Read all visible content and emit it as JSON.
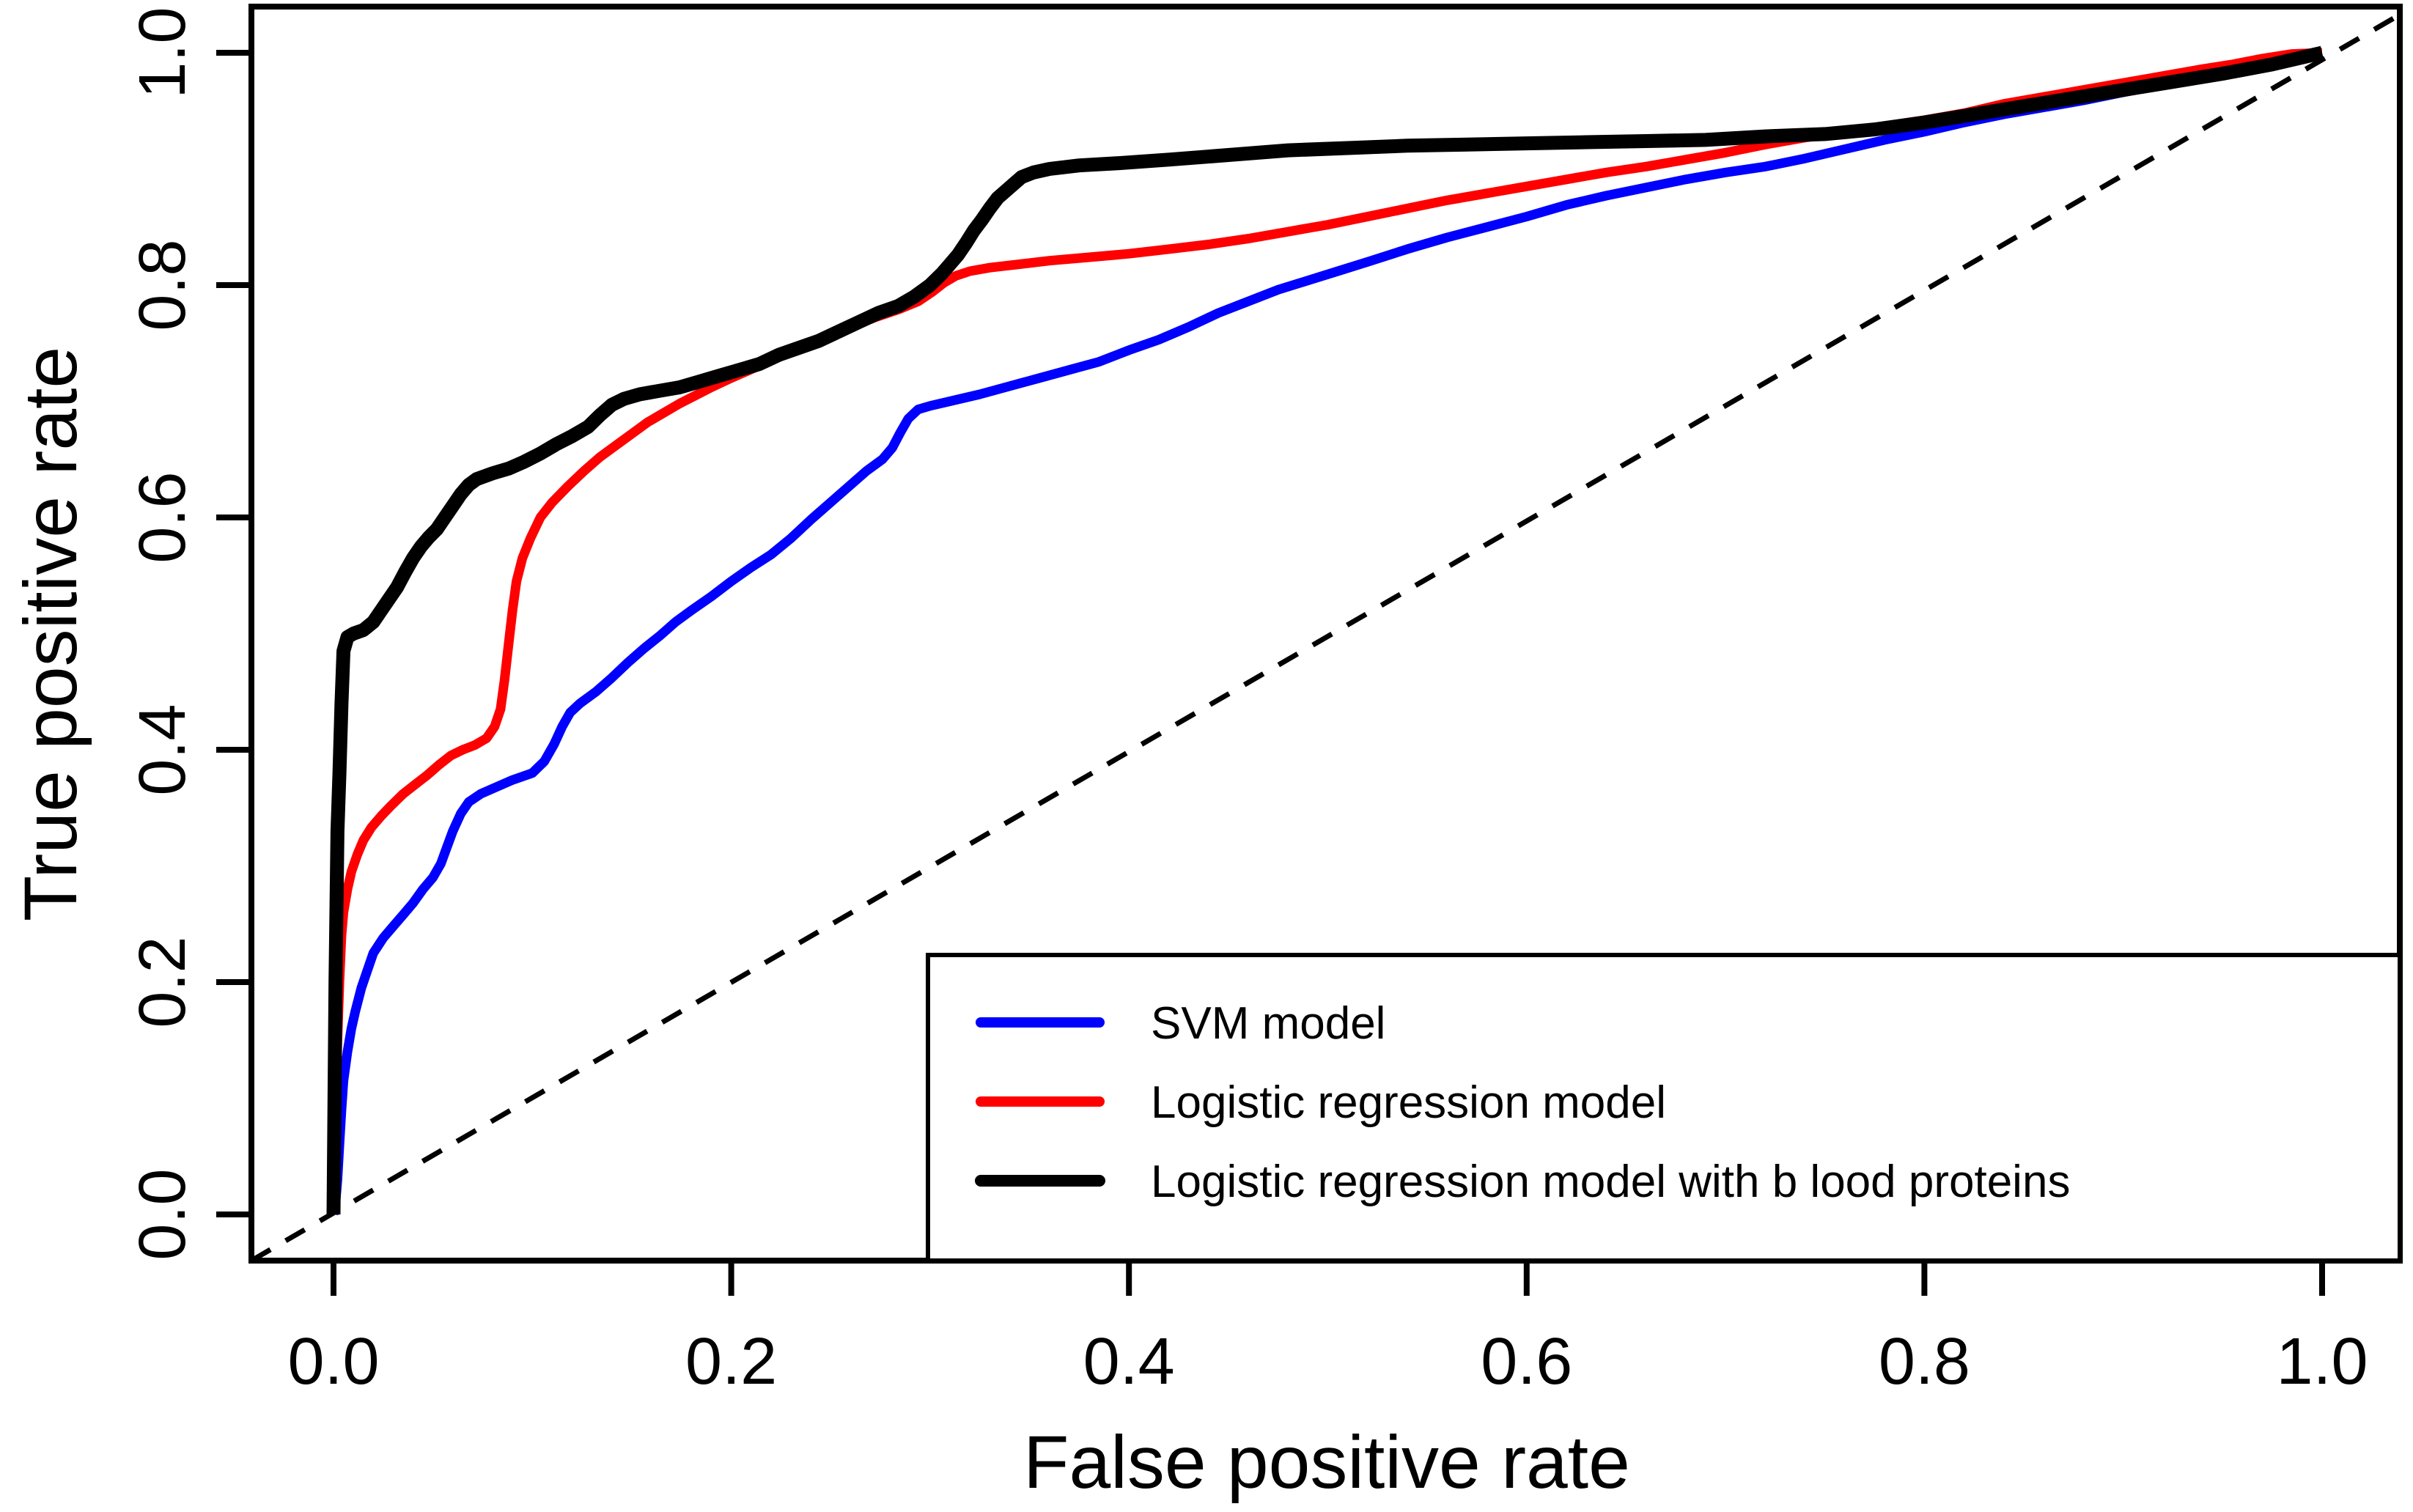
{
  "figure": {
    "background_color": "#ffffff",
    "axis_color": "#000000"
  },
  "chart_data": {
    "type": "line",
    "title": "",
    "xlabel": "False positive rate",
    "ylabel": "True positive rate",
    "xlim": [
      0,
      1
    ],
    "ylim": [
      0,
      1
    ],
    "grid": false,
    "x_tick_values": [
      0,
      0.2,
      0.4,
      0.6,
      0.8,
      1.0
    ],
    "x_tick_labels": [
      "0.0",
      "0.2",
      "0.4",
      "0.6",
      "0.8",
      "1.0"
    ],
    "y_tick_values": [
      0,
      0.2,
      0.4,
      0.6,
      0.8,
      1.0
    ],
    "y_tick_labels": [
      "0.0",
      "0.2",
      "0.4",
      "0.6",
      "0.8",
      "1.0"
    ],
    "legend_position": "bottom-right",
    "reference_line": {
      "style": "dashed",
      "color": "#000000",
      "from": [
        0,
        0
      ],
      "to": [
        1,
        1
      ]
    },
    "series": [
      {
        "name": "SVM model",
        "color": "#0000ff",
        "line_width": 13,
        "points": [
          [
            0,
            0
          ],
          [
            0.001,
            0.01
          ],
          [
            0.002,
            0.03
          ],
          [
            0.003,
            0.06
          ],
          [
            0.004,
            0.09
          ],
          [
            0.005,
            0.115
          ],
          [
            0.007,
            0.14
          ],
          [
            0.009,
            0.16
          ],
          [
            0.011,
            0.175
          ],
          [
            0.014,
            0.195
          ],
          [
            0.017,
            0.21
          ],
          [
            0.02,
            0.225
          ],
          [
            0.025,
            0.238
          ],
          [
            0.03,
            0.248
          ],
          [
            0.035,
            0.258
          ],
          [
            0.04,
            0.268
          ],
          [
            0.045,
            0.28
          ],
          [
            0.05,
            0.29
          ],
          [
            0.054,
            0.302
          ],
          [
            0.057,
            0.316
          ],
          [
            0.06,
            0.33
          ],
          [
            0.064,
            0.345
          ],
          [
            0.068,
            0.355
          ],
          [
            0.074,
            0.362
          ],
          [
            0.082,
            0.368
          ],
          [
            0.09,
            0.374
          ],
          [
            0.1,
            0.38
          ],
          [
            0.106,
            0.39
          ],
          [
            0.111,
            0.405
          ],
          [
            0.115,
            0.42
          ],
          [
            0.119,
            0.432
          ],
          [
            0.124,
            0.44
          ],
          [
            0.132,
            0.45
          ],
          [
            0.14,
            0.462
          ],
          [
            0.148,
            0.475
          ],
          [
            0.156,
            0.487
          ],
          [
            0.164,
            0.498
          ],
          [
            0.172,
            0.51
          ],
          [
            0.18,
            0.52
          ],
          [
            0.19,
            0.532
          ],
          [
            0.2,
            0.545
          ],
          [
            0.21,
            0.557
          ],
          [
            0.22,
            0.568
          ],
          [
            0.23,
            0.582
          ],
          [
            0.24,
            0.598
          ],
          [
            0.25,
            0.613
          ],
          [
            0.26,
            0.628
          ],
          [
            0.268,
            0.64
          ],
          [
            0.276,
            0.65
          ],
          [
            0.281,
            0.66
          ],
          [
            0.285,
            0.673
          ],
          [
            0.289,
            0.685
          ],
          [
            0.294,
            0.693
          ],
          [
            0.3,
            0.696
          ],
          [
            0.31,
            0.7
          ],
          [
            0.325,
            0.706
          ],
          [
            0.34,
            0.713
          ],
          [
            0.355,
            0.72
          ],
          [
            0.37,
            0.727
          ],
          [
            0.385,
            0.734
          ],
          [
            0.4,
            0.744
          ],
          [
            0.415,
            0.753
          ],
          [
            0.43,
            0.764
          ],
          [
            0.445,
            0.776
          ],
          [
            0.46,
            0.786
          ],
          [
            0.475,
            0.796
          ],
          [
            0.49,
            0.804
          ],
          [
            0.505,
            0.812
          ],
          [
            0.52,
            0.82
          ],
          [
            0.54,
            0.831
          ],
          [
            0.56,
            0.841
          ],
          [
            0.58,
            0.85
          ],
          [
            0.6,
            0.859
          ],
          [
            0.62,
            0.869
          ],
          [
            0.64,
            0.877
          ],
          [
            0.66,
            0.884
          ],
          [
            0.68,
            0.891
          ],
          [
            0.7,
            0.897
          ],
          [
            0.72,
            0.902
          ],
          [
            0.74,
            0.909
          ],
          [
            0.76,
            0.917
          ],
          [
            0.78,
            0.925
          ],
          [
            0.8,
            0.932
          ],
          [
            0.82,
            0.94
          ],
          [
            0.84,
            0.947
          ],
          [
            0.86,
            0.953
          ],
          [
            0.88,
            0.959
          ],
          [
            0.9,
            0.966
          ],
          [
            0.92,
            0.973
          ],
          [
            0.94,
            0.979
          ],
          [
            0.96,
            0.986
          ],
          [
            0.98,
            0.993
          ],
          [
            1,
            1
          ]
        ]
      },
      {
        "name": "Logistic regression model",
        "color": "#ff0000",
        "line_width": 13,
        "points": [
          [
            0,
            0
          ],
          [
            0.001,
            0.08
          ],
          [
            0.002,
            0.15
          ],
          [
            0.003,
            0.2
          ],
          [
            0.004,
            0.24
          ],
          [
            0.005,
            0.26
          ],
          [
            0.007,
            0.28
          ],
          [
            0.009,
            0.295
          ],
          [
            0.012,
            0.31
          ],
          [
            0.015,
            0.322
          ],
          [
            0.019,
            0.333
          ],
          [
            0.024,
            0.343
          ],
          [
            0.029,
            0.352
          ],
          [
            0.035,
            0.362
          ],
          [
            0.041,
            0.37
          ],
          [
            0.047,
            0.378
          ],
          [
            0.053,
            0.387
          ],
          [
            0.059,
            0.395
          ],
          [
            0.065,
            0.4
          ],
          [
            0.071,
            0.404
          ],
          [
            0.077,
            0.41
          ],
          [
            0.081,
            0.42
          ],
          [
            0.084,
            0.435
          ],
          [
            0.086,
            0.46
          ],
          [
            0.088,
            0.49
          ],
          [
            0.09,
            0.52
          ],
          [
            0.092,
            0.545
          ],
          [
            0.095,
            0.565
          ],
          [
            0.099,
            0.582
          ],
          [
            0.104,
            0.6
          ],
          [
            0.11,
            0.613
          ],
          [
            0.118,
            0.627
          ],
          [
            0.126,
            0.64
          ],
          [
            0.134,
            0.652
          ],
          [
            0.142,
            0.662
          ],
          [
            0.15,
            0.672
          ],
          [
            0.158,
            0.682
          ],
          [
            0.166,
            0.69
          ],
          [
            0.174,
            0.698
          ],
          [
            0.182,
            0.705
          ],
          [
            0.19,
            0.712
          ],
          [
            0.2,
            0.72
          ],
          [
            0.212,
            0.729
          ],
          [
            0.224,
            0.738
          ],
          [
            0.236,
            0.747
          ],
          [
            0.248,
            0.756
          ],
          [
            0.26,
            0.764
          ],
          [
            0.272,
            0.772
          ],
          [
            0.284,
            0.779
          ],
          [
            0.294,
            0.786
          ],
          [
            0.301,
            0.794
          ],
          [
            0.307,
            0.802
          ],
          [
            0.313,
            0.808
          ],
          [
            0.32,
            0.812
          ],
          [
            0.33,
            0.815
          ],
          [
            0.345,
            0.818
          ],
          [
            0.36,
            0.821
          ],
          [
            0.38,
            0.824
          ],
          [
            0.4,
            0.827
          ],
          [
            0.42,
            0.831
          ],
          [
            0.44,
            0.835
          ],
          [
            0.46,
            0.84
          ],
          [
            0.48,
            0.846
          ],
          [
            0.5,
            0.852
          ],
          [
            0.52,
            0.859
          ],
          [
            0.54,
            0.866
          ],
          [
            0.56,
            0.873
          ],
          [
            0.58,
            0.879
          ],
          [
            0.6,
            0.885
          ],
          [
            0.62,
            0.891
          ],
          [
            0.64,
            0.897
          ],
          [
            0.66,
            0.902
          ],
          [
            0.68,
            0.908
          ],
          [
            0.7,
            0.914
          ],
          [
            0.72,
            0.921
          ],
          [
            0.74,
            0.927
          ],
          [
            0.76,
            0.932
          ],
          [
            0.78,
            0.937
          ],
          [
            0.8,
            0.942
          ],
          [
            0.82,
            0.948
          ],
          [
            0.84,
            0.956
          ],
          [
            0.86,
            0.962
          ],
          [
            0.88,
            0.968
          ],
          [
            0.9,
            0.974
          ],
          [
            0.92,
            0.98
          ],
          [
            0.94,
            0.986
          ],
          [
            0.955,
            0.99
          ],
          [
            0.97,
            0.995
          ],
          [
            0.985,
            0.999
          ],
          [
            1,
            1
          ]
        ]
      },
      {
        "name": "Logistic regression model with b lood proteins",
        "color": "#000000",
        "line_width": 19,
        "points": [
          [
            0,
            0
          ],
          [
            0.001,
            0.2
          ],
          [
            0.002,
            0.33
          ],
          [
            0.003,
            0.38
          ],
          [
            0.004,
            0.44
          ],
          [
            0.005,
            0.485
          ],
          [
            0.007,
            0.497
          ],
          [
            0.01,
            0.5
          ],
          [
            0.015,
            0.503
          ],
          [
            0.02,
            0.51
          ],
          [
            0.024,
            0.52
          ],
          [
            0.028,
            0.53
          ],
          [
            0.032,
            0.54
          ],
          [
            0.036,
            0.553
          ],
          [
            0.04,
            0.565
          ],
          [
            0.044,
            0.575
          ],
          [
            0.048,
            0.583
          ],
          [
            0.052,
            0.59
          ],
          [
            0.056,
            0.6
          ],
          [
            0.06,
            0.61
          ],
          [
            0.064,
            0.62
          ],
          [
            0.068,
            0.628
          ],
          [
            0.072,
            0.633
          ],
          [
            0.08,
            0.638
          ],
          [
            0.088,
            0.642
          ],
          [
            0.096,
            0.648
          ],
          [
            0.104,
            0.655
          ],
          [
            0.112,
            0.663
          ],
          [
            0.12,
            0.67
          ],
          [
            0.128,
            0.678
          ],
          [
            0.134,
            0.688
          ],
          [
            0.14,
            0.697
          ],
          [
            0.146,
            0.702
          ],
          [
            0.154,
            0.706
          ],
          [
            0.164,
            0.709
          ],
          [
            0.174,
            0.712
          ],
          [
            0.184,
            0.717
          ],
          [
            0.194,
            0.722
          ],
          [
            0.204,
            0.727
          ],
          [
            0.214,
            0.732
          ],
          [
            0.224,
            0.74
          ],
          [
            0.234,
            0.746
          ],
          [
            0.244,
            0.752
          ],
          [
            0.254,
            0.76
          ],
          [
            0.264,
            0.768
          ],
          [
            0.274,
            0.776
          ],
          [
            0.284,
            0.782
          ],
          [
            0.292,
            0.79
          ],
          [
            0.3,
            0.8
          ],
          [
            0.306,
            0.81
          ],
          [
            0.31,
            0.818
          ],
          [
            0.314,
            0.826
          ],
          [
            0.318,
            0.836
          ],
          [
            0.322,
            0.847
          ],
          [
            0.326,
            0.856
          ],
          [
            0.33,
            0.866
          ],
          [
            0.334,
            0.875
          ],
          [
            0.338,
            0.881
          ],
          [
            0.342,
            0.887
          ],
          [
            0.346,
            0.893
          ],
          [
            0.352,
            0.897
          ],
          [
            0.36,
            0.9
          ],
          [
            0.375,
            0.903
          ],
          [
            0.395,
            0.905
          ],
          [
            0.42,
            0.908
          ],
          [
            0.45,
            0.912
          ],
          [
            0.48,
            0.916
          ],
          [
            0.51,
            0.918
          ],
          [
            0.54,
            0.92
          ],
          [
            0.57,
            0.921
          ],
          [
            0.6,
            0.922
          ],
          [
            0.63,
            0.923
          ],
          [
            0.66,
            0.924
          ],
          [
            0.69,
            0.925
          ],
          [
            0.72,
            0.928
          ],
          [
            0.75,
            0.93
          ],
          [
            0.775,
            0.934
          ],
          [
            0.8,
            0.94
          ],
          [
            0.825,
            0.947
          ],
          [
            0.85,
            0.954
          ],
          [
            0.875,
            0.961
          ],
          [
            0.9,
            0.968
          ],
          [
            0.925,
            0.975
          ],
          [
            0.95,
            0.982
          ],
          [
            0.975,
            0.99
          ],
          [
            1,
            1
          ]
        ]
      }
    ]
  }
}
